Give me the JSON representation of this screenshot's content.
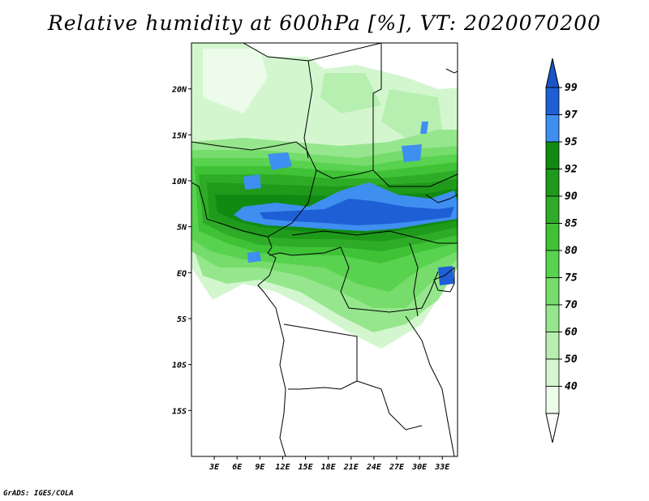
{
  "title": "Relative humidity at 600hPa [%], VT: 2020070200",
  "footer": "GrADS: IGES/COLA",
  "map": {
    "lon_range": [
      0,
      35
    ],
    "lat_range": [
      -20,
      25
    ],
    "lon_ticks": [
      "3E",
      "6E",
      "9E",
      "12E",
      "15E",
      "18E",
      "21E",
      "24E",
      "27E",
      "30E",
      "33E"
    ],
    "lat_ticks": [
      "20N",
      "15N",
      "10N",
      "5N",
      "EQ",
      "5S",
      "10S",
      "15S"
    ],
    "variable": "Relative humidity",
    "level": "600hPa",
    "units": "%",
    "valid_time": "2020070200"
  },
  "colorbar": {
    "labels": [
      "99",
      "97",
      "95",
      "92",
      "90",
      "85",
      "80",
      "75",
      "70",
      "60",
      "50",
      "40"
    ],
    "colors": {
      "c40": "#ecfbea",
      "c50": "#d3f6cf",
      "c60": "#b6efb0",
      "c70": "#96e68d",
      "c75": "#76dc6c",
      "c80": "#58d24f",
      "c85": "#3fc236",
      "c90": "#2eac27",
      "c92": "#1f9a1b",
      "c95": "#118a12",
      "c97": "#3f8ff0",
      "c99": "#1f5fd6",
      "top": "#1a55c8"
    }
  }
}
